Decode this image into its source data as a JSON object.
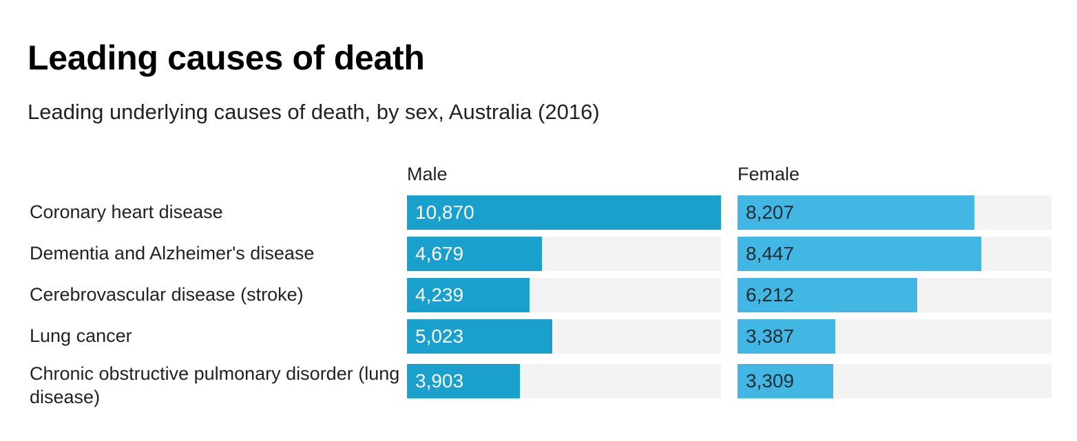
{
  "chart_data": {
    "type": "bar",
    "orientation": "horizontal",
    "title": "Leading causes of death",
    "subtitle": "Leading underlying causes of death, by sex, Australia (2016)",
    "categories": [
      "Coronary heart disease",
      "Dementia and Alzheimer's disease",
      "Cerebrovascular disease (stroke)",
      "Lung cancer",
      "Chronic obstructive pulmonary disorder (lung disease)"
    ],
    "series": [
      {
        "name": "Male",
        "color": "#1aa0cc",
        "values": [
          10870,
          4679,
          4239,
          5023,
          3903
        ],
        "labels": [
          "10,870",
          "4,679",
          "4,239",
          "5,023",
          "3,903"
        ]
      },
      {
        "name": "Female",
        "color": "#43b7e4",
        "values": [
          8207,
          8447,
          6212,
          3387,
          3309
        ],
        "labels": [
          "8,207",
          "8,447",
          "6,212",
          "3,387",
          "3,309"
        ]
      }
    ],
    "xlim": [
      0,
      10870
    ],
    "track_color": "#f3f3f3"
  }
}
